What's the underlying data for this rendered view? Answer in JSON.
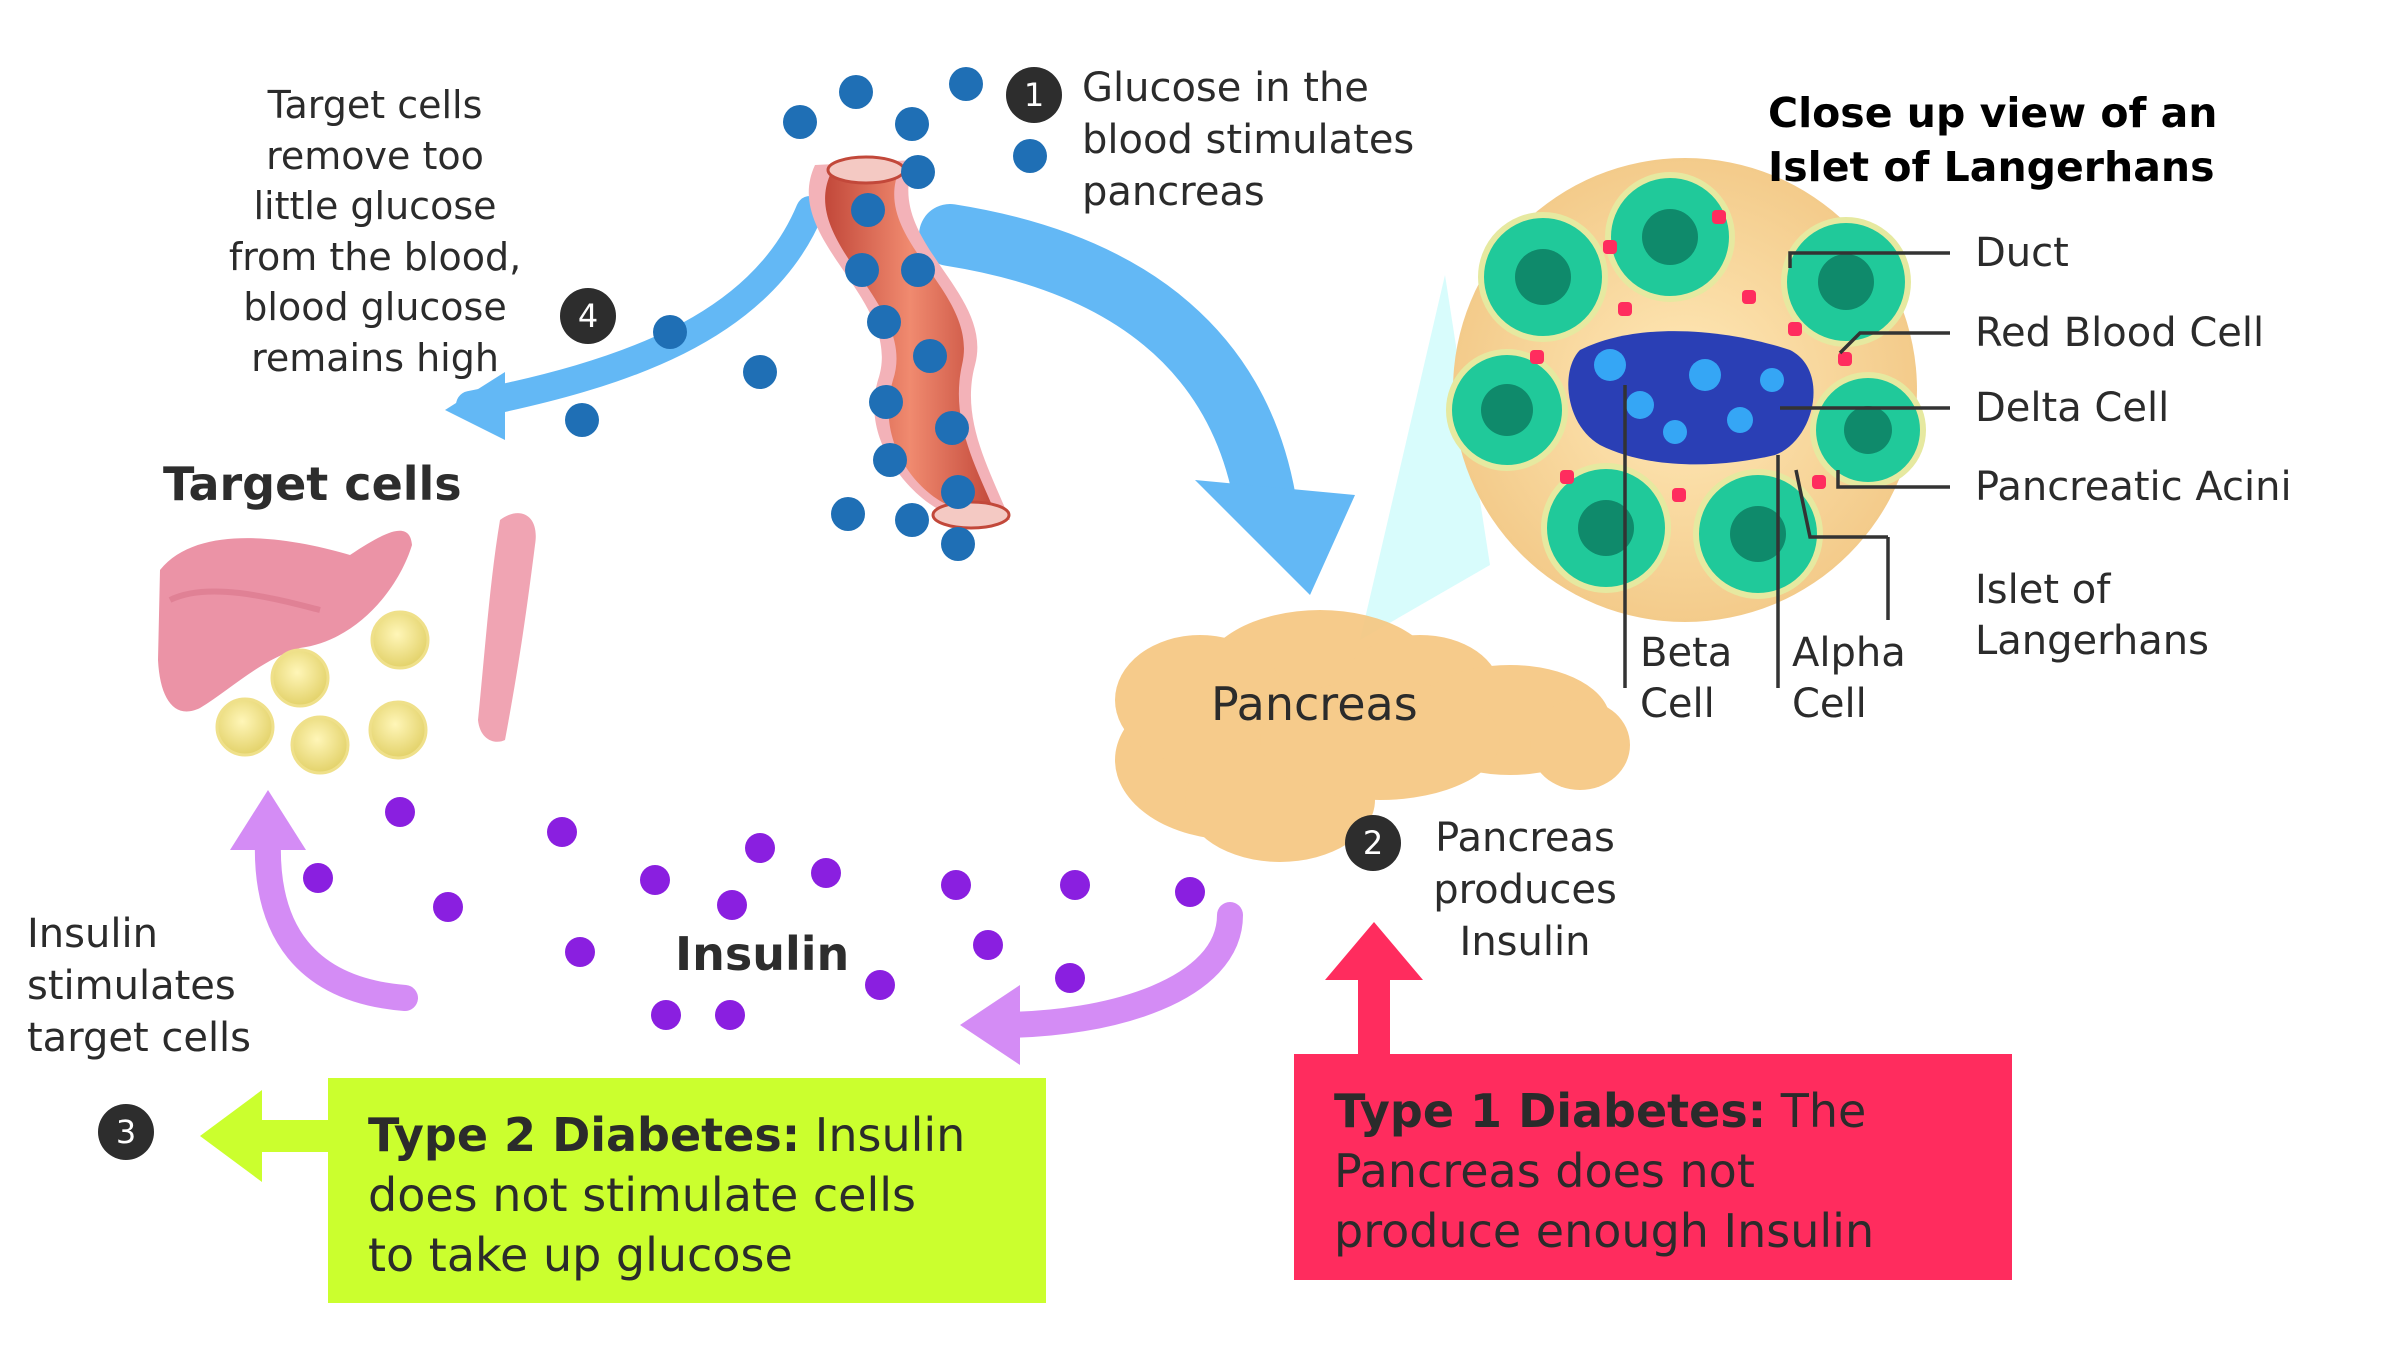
{
  "steps": {
    "one": {
      "number": "1",
      "text": "Glucose in the\nblood stimulates\npancreas"
    },
    "two": {
      "number": "2",
      "text": "Pancreas\nproduces\nInsulin"
    },
    "three": {
      "number": "3",
      "text": "Insulin\nstimulates\ntarget cells"
    },
    "four": {
      "number": "4",
      "text": "Target cells\nremove too\nlittle glucose\nfrom the blood,\nblood glucose\nremains high"
    }
  },
  "headings": {
    "target_cells": "Target cells",
    "insulin": "Insulin",
    "pancreas": "Pancreas"
  },
  "islet": {
    "title": "Close up view of an\nIslet of Langerhans",
    "labels": {
      "duct": "Duct",
      "red_blood_cell": "Red Blood Cell",
      "delta_cell": "Delta Cell",
      "pancreatic_acini": "Pancreatic Acini",
      "islet_of_langerhans": "Islet of\nLangerhans",
      "beta_cell": "Beta\nCell",
      "alpha_cell": "Alpha\nCell"
    }
  },
  "boxes": {
    "type2": {
      "bold": "Type 2 Diabetes:",
      "text": " Insulin\ndoes not stimulate cells\nto take up glucose"
    },
    "type1": {
      "bold": "Type 1 Diabetes:",
      "text": " The\nPancreas does not\nproduce enough Insulin"
    }
  },
  "colors": {
    "glucose": "#1f6fb5",
    "insulin": "#8a1fe0",
    "blue_arrow": "#63b8f5",
    "purple_arrow": "#d48cf5",
    "type2_box": "#cbff2e",
    "type1_box": "#ff2c5e",
    "pancreas": "#f6c67f"
  }
}
